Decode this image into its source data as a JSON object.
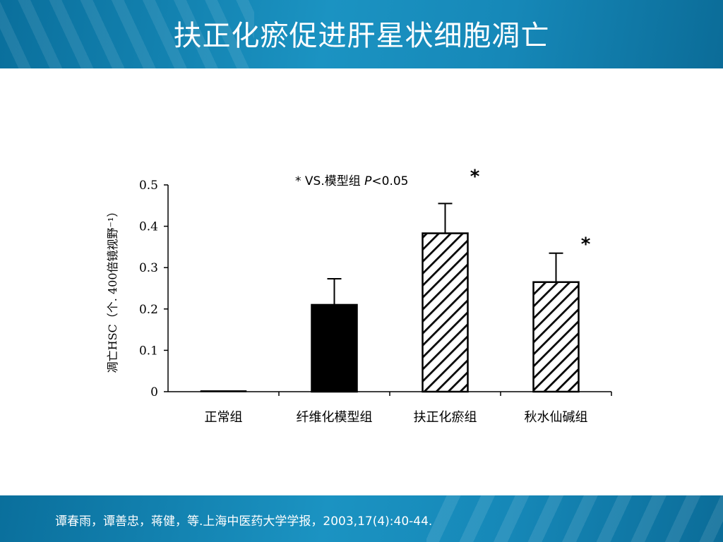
{
  "slide": {
    "title": "扶正化瘀促进肝星状细胞凋亡",
    "citation": "谭春雨，谭善忠，蒋健，等.上海中医药大学学报，2003,17(4):40-44."
  },
  "colors": {
    "banner": "#1688b8",
    "bar_solid": "#000000",
    "hatch": "#000000"
  },
  "chart_data": {
    "type": "bar",
    "ylabel": "凋亡HSC（个. 400倍镜视野⁻¹）",
    "ylim": [
      0,
      0.5
    ],
    "yticks": [
      "0",
      "0.1",
      "0.2",
      "0.3",
      "0.4",
      "0.5"
    ],
    "categories": [
      "正常组",
      "纤维化模型组",
      "扶正化瘀组",
      "秋水仙碱组"
    ],
    "values": [
      0.002,
      0.21,
      0.383,
      0.265
    ],
    "errors": [
      0,
      0.063,
      0.072,
      0.07
    ],
    "fills": [
      "none",
      "solid",
      "hatch",
      "hatch"
    ],
    "significance": [
      "",
      "",
      "*",
      "*"
    ],
    "annotation": {
      "star": "*",
      "text": " VS.模型组 ",
      "p": "P",
      "cond": "<0.05"
    }
  }
}
